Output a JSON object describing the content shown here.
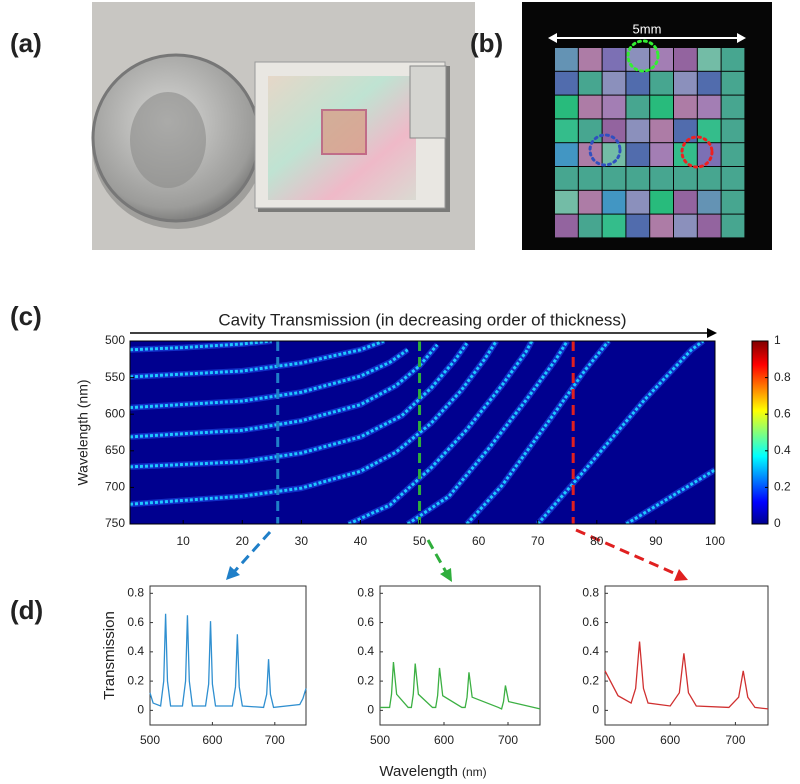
{
  "panel_labels": [
    "(a)",
    "(b)",
    "(c)",
    "(d)"
  ],
  "scale_label": "5mm",
  "chart_data": [
    {
      "type": "heatmap",
      "title": "Cavity Transmission (in decreasing order of thickness)",
      "y_label": "Wavelength (nm)",
      "xlim": [
        1,
        100
      ],
      "xticks": [
        10,
        20,
        30,
        40,
        50,
        60,
        70,
        80,
        90,
        100
      ],
      "ylim": [
        500,
        750
      ],
      "yticks": [
        500,
        550,
        600,
        650,
        700,
        750
      ],
      "y_reversed": true,
      "background": "#00008f",
      "line_color": "#1ec8ff",
      "series": [
        {
          "x": [
            1,
            10,
            20,
            25
          ],
          "values": [
            512,
            509,
            504,
            500
          ]
        },
        {
          "x": [
            1,
            20,
            30,
            40,
            44
          ],
          "values": [
            549,
            541,
            530,
            512,
            500
          ]
        },
        {
          "x": [
            1,
            20,
            30,
            40,
            45,
            48
          ],
          "values": [
            591,
            582,
            570,
            548,
            529,
            512
          ]
        },
        {
          "x": [
            1,
            20,
            30,
            40,
            46,
            50,
            53
          ],
          "values": [
            631,
            622,
            609,
            587,
            561,
            534,
            505
          ]
        },
        {
          "x": [
            1,
            20,
            30,
            40,
            47,
            52,
            56,
            58
          ],
          "values": [
            672,
            665,
            653,
            631,
            602,
            564,
            526,
            503
          ]
        },
        {
          "x": [
            1,
            20,
            30,
            40,
            46,
            52,
            57,
            61,
            63
          ],
          "values": [
            723,
            712,
            701,
            678,
            652,
            612,
            568,
            525,
            500
          ]
        },
        {
          "x": [
            38,
            45,
            52,
            58,
            64,
            68,
            69
          ],
          "values": [
            750,
            724,
            673,
            621,
            560,
            515,
            500
          ]
        },
        {
          "x": [
            48,
            55,
            62,
            68,
            73,
            75
          ],
          "values": [
            750,
            712,
            644,
            581,
            526,
            500
          ]
        },
        {
          "x": [
            58,
            64,
            72,
            78,
            82
          ],
          "values": [
            750,
            697,
            608,
            540,
            500
          ]
        },
        {
          "x": [
            70,
            78,
            88,
            96,
            98
          ],
          "values": [
            750,
            676,
            581,
            512,
            500
          ]
        },
        {
          "x": [
            85,
            100
          ],
          "values": [
            750,
            676
          ]
        }
      ],
      "markers": [
        {
          "x": 26,
          "color": "#1f7fc8"
        },
        {
          "x": 50,
          "color": "#2fae3c"
        },
        {
          "x": 76,
          "color": "#e02020"
        }
      ],
      "colorbar": {
        "lim": [
          0,
          1
        ],
        "ticks": [
          0,
          0.2,
          0.4,
          0.6,
          0.8,
          1
        ]
      }
    },
    {
      "type": "line",
      "y_label": "Transmission",
      "xlim": [
        500,
        750
      ],
      "xticks": [
        500,
        600,
        700
      ],
      "ylim": [
        -0.1,
        0.85
      ],
      "yticks": [
        0,
        0.2,
        0.4,
        0.6,
        0.8
      ],
      "series": [
        {
          "color": "#2f8fd0",
          "x": [
            500,
            505,
            517,
            522,
            525,
            528,
            533,
            552,
            557,
            560,
            563,
            568,
            589,
            594,
            597,
            600,
            605,
            632,
            637,
            640,
            643,
            648,
            682,
            687,
            690,
            693,
            698,
            740,
            745,
            750
          ],
          "values": [
            0.12,
            0.05,
            0.03,
            0.2,
            0.66,
            0.2,
            0.03,
            0.03,
            0.2,
            0.65,
            0.2,
            0.03,
            0.03,
            0.18,
            0.61,
            0.18,
            0.03,
            0.03,
            0.16,
            0.52,
            0.16,
            0.03,
            0.02,
            0.11,
            0.35,
            0.11,
            0.02,
            0.04,
            0.08,
            0.15
          ]
        }
      ]
    },
    {
      "type": "line",
      "x_label": "Wavelength",
      "x_label_unit": "(nm)",
      "xlim": [
        500,
        750
      ],
      "xticks": [
        500,
        600,
        700
      ],
      "ylim": [
        -0.1,
        0.85
      ],
      "yticks": [
        0,
        0.2,
        0.4,
        0.6,
        0.8
      ],
      "series": [
        {
          "color": "#3cb043",
          "x": [
            500,
            510,
            515,
            518,
            521,
            526,
            544,
            549,
            552,
            555,
            560,
            582,
            587,
            590,
            593,
            598,
            628,
            633,
            636,
            639,
            644,
            685,
            690,
            693,
            696,
            701,
            750
          ],
          "values": [
            0.02,
            0.02,
            0.02,
            0.11,
            0.33,
            0.11,
            0.02,
            0.02,
            0.11,
            0.32,
            0.11,
            0.02,
            0.02,
            0.1,
            0.29,
            0.1,
            0.02,
            0.02,
            0.09,
            0.26,
            0.09,
            0.02,
            0.01,
            0.06,
            0.17,
            0.06,
            0.01
          ]
        }
      ]
    },
    {
      "type": "line",
      "xlim": [
        500,
        750
      ],
      "xticks": [
        500,
        600,
        700
      ],
      "ylim": [
        -0.1,
        0.85
      ],
      "yticks": [
        0,
        0.2,
        0.4,
        0.6,
        0.8
      ],
      "series": [
        {
          "color": "#d03030",
          "x": [
            500,
            520,
            540,
            547,
            553,
            559,
            566,
            600,
            614,
            621,
            628,
            640,
            690,
            705,
            712,
            719,
            730,
            750
          ],
          "values": [
            0.27,
            0.1,
            0.05,
            0.15,
            0.47,
            0.15,
            0.05,
            0.03,
            0.12,
            0.39,
            0.12,
            0.03,
            0.02,
            0.09,
            0.27,
            0.09,
            0.02,
            0.01
          ]
        }
      ]
    }
  ]
}
